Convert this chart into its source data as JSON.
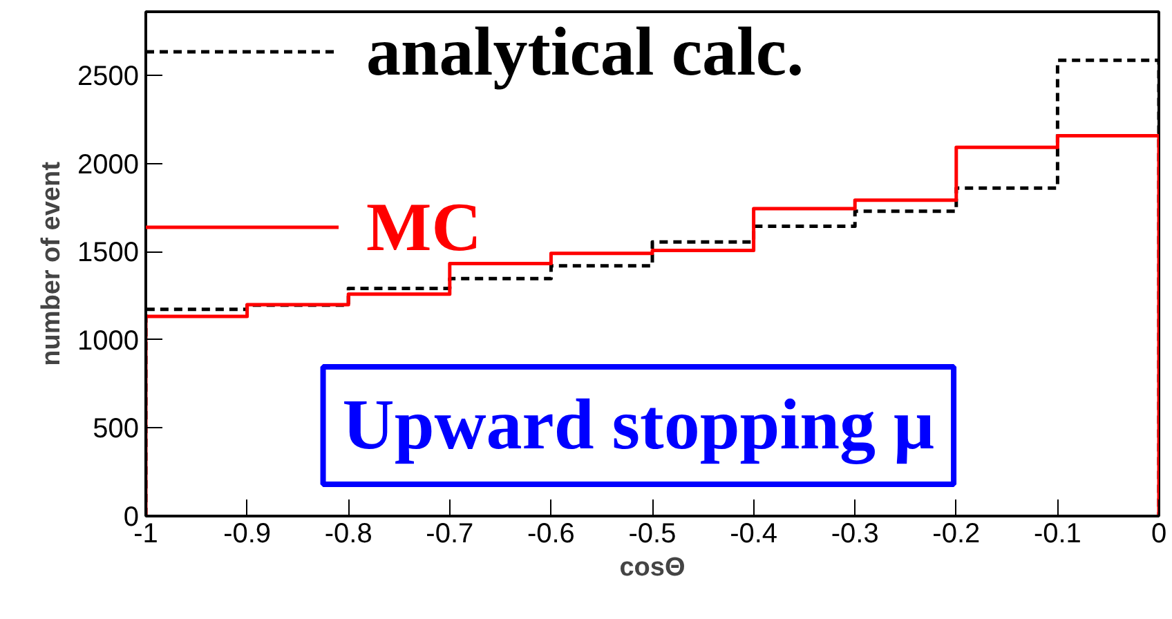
{
  "chart_data": {
    "type": "histogram",
    "xlabel": "cosΘ",
    "ylabel": "number of event",
    "bins": [
      -1,
      -0.9,
      -0.8,
      -0.7,
      -0.6,
      -0.5,
      -0.4,
      -0.3,
      -0.2,
      -0.1,
      0
    ],
    "series": [
      {
        "name": "analytical calc.",
        "color": "#000000",
        "line_style": "dashed",
        "values": [
          1172,
          1196,
          1291,
          1347,
          1419,
          1554,
          1644,
          1729,
          1860,
          2585
        ]
      },
      {
        "name": "MC",
        "color": "#ff0000",
        "line_style": "solid",
        "values": [
          1132,
          1199,
          1259,
          1432,
          1490,
          1506,
          1743,
          1791,
          2091,
          2157
        ]
      }
    ],
    "xlim": [
      -1,
      0
    ],
    "ylim": [
      0,
      2860
    ],
    "xticks": [
      -1,
      -0.9,
      -0.8,
      -0.7,
      -0.6,
      -0.5,
      -0.4,
      -0.3,
      -0.2,
      -0.1,
      0
    ],
    "yticks": [
      0,
      500,
      1000,
      1500,
      2000,
      2500
    ],
    "legend": "top left",
    "grid": false,
    "annotations": [
      "Upward stopping μ"
    ]
  }
}
